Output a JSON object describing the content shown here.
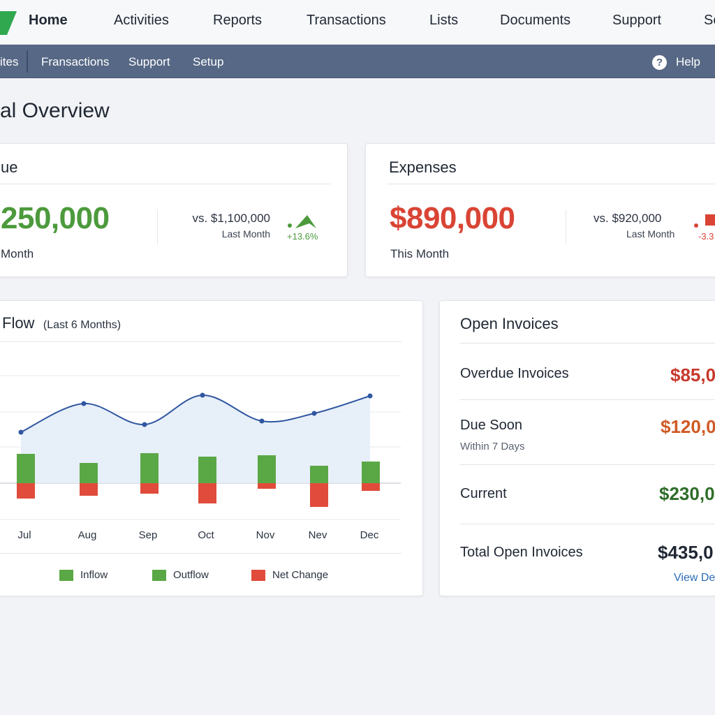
{
  "topnav": {
    "items": [
      {
        "label": "Home",
        "active": true
      },
      {
        "label": "Activities"
      },
      {
        "label": "Reports"
      },
      {
        "label": "Transactions"
      },
      {
        "label": "Lists"
      },
      {
        "label": "Documents"
      },
      {
        "label": "Support"
      },
      {
        "label": "Se"
      }
    ]
  },
  "subnav": {
    "items": [
      "ites",
      "Fransactions",
      "Support",
      "Setup"
    ],
    "help_label": "Help",
    "help_glyph": "?"
  },
  "page": {
    "title": "al Overview"
  },
  "revenue": {
    "title": "ue",
    "value": "250,000",
    "period": " Month",
    "vs": "vs. $1,100,000",
    "last": "Last Month",
    "change": "+13.6%",
    "color": "#4c9a3c"
  },
  "expenses": {
    "title": "Expenses",
    "value": "$890,000",
    "period": "This Month",
    "vs": "vs. $920,000",
    "last": "Last Month",
    "change": "-3.3",
    "color": "#d94434"
  },
  "cashflow": {
    "title": "Flow",
    "subtitle": "(Last 6 Months)",
    "legend": [
      "Inflow",
      "Outflow",
      "Net Change"
    ],
    "colors": {
      "inflow": "#5aa845",
      "outflow": "#5aa845",
      "net": "#e04b3b",
      "line": "#2f56a0",
      "area": "#e3ecf8"
    }
  },
  "chart_data": {
    "type": "bar",
    "title": "",
    "categories": [
      "Jul",
      "Aug",
      "Sep",
      "Oct",
      "Nov",
      "Nev",
      "Dec"
    ],
    "series": [
      {
        "name": "Inflow",
        "values": [
          42,
          29,
          43,
          38,
          40,
          25,
          31
        ]
      },
      {
        "name": "Net Change",
        "values": [
          -22,
          -18,
          -15,
          -29,
          -8,
          -34,
          -11
        ]
      },
      {
        "name": "",
        "type": "line",
        "values": [
          73,
          114,
          84,
          126,
          89,
          100,
          125
        ]
      }
    ],
    "ylim": [
      -60,
      160
    ],
    "grid": true,
    "legend": "bottom"
  },
  "invoices": {
    "title": "Open Invoices",
    "rows": [
      {
        "label": "Overdue Invoices",
        "sub": "",
        "amount": "$85,0",
        "color": "#c7392c"
      },
      {
        "label": "Due Soon",
        "sub": "Within 7 Days",
        "amount": "$120,0",
        "color": "#cf5a25"
      },
      {
        "label": "Current",
        "sub": "",
        "amount": "$230,0",
        "color": "#2f6e2a"
      },
      {
        "label": "Total Open Invoices",
        "sub": "",
        "amount": "$435,0",
        "color": "#1f2733"
      }
    ],
    "link": "View De"
  }
}
